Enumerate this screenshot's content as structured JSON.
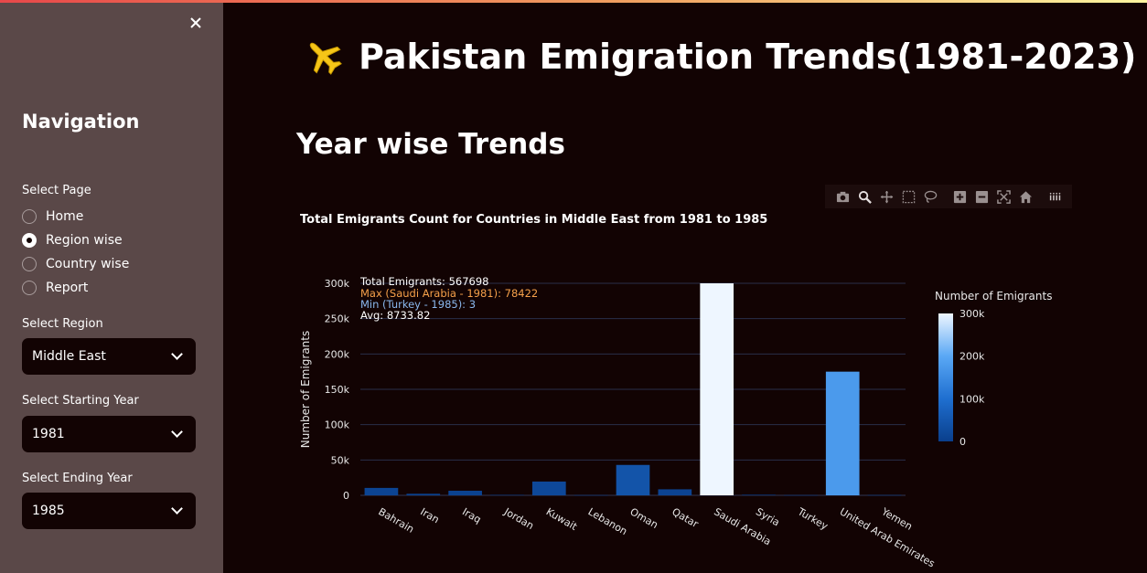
{
  "sidebar": {
    "nav_title": "Navigation",
    "page_label": "Select Page",
    "pages": [
      "Home",
      "Region wise",
      "Country wise",
      "Report"
    ],
    "selected_page": "Region wise",
    "region_label": "Select Region",
    "region_value": "Middle East",
    "start_label": "Select Starting Year",
    "start_value": "1981",
    "end_label": "Select Ending Year",
    "end_value": "1985"
  },
  "main": {
    "title": "Pakistan Emigration Trends(1981-2023)",
    "section_title": "Year wise Trends"
  },
  "modebar_icons": [
    "camera-icon",
    "zoom-icon",
    "pan-icon",
    "box-select-icon",
    "lasso-icon",
    "zoom-in-icon",
    "zoom-out-icon",
    "autoscale-icon",
    "home-icon",
    "plotly-logo-icon"
  ],
  "chart_data": {
    "type": "bar",
    "title": "Total Emigrants Count for Countries in Middle East from 1981 to 1985",
    "xlabel": "",
    "ylabel": "Number of Emigrants",
    "ylim": [
      0,
      300000
    ],
    "yticks": [
      "0",
      "50k",
      "100k",
      "150k",
      "200k",
      "250k",
      "300k"
    ],
    "categories": [
      "Bahrain",
      "Iran",
      "Iraq",
      "Jordan",
      "Kuwait",
      "Lebanon",
      "Oman",
      "Qatar",
      "Saudi Arabia",
      "Syria",
      "Turkey",
      "United Arab Emirates",
      "Yemen"
    ],
    "values": [
      10500,
      2200,
      6500,
      600,
      19500,
      300,
      43000,
      8500,
      300000,
      800,
      300,
      175000,
      400
    ],
    "annotations": {
      "total": "Total Emigrants: 567698",
      "max": "Max (Saudi Arabia - 1981): 78422",
      "min": "Min (Turkey - 1985): 3",
      "avg": "Avg: 8733.82"
    },
    "annotation_colors": {
      "total": "#ffffff",
      "max": "#f5a04a",
      "min": "#8ab8ee",
      "avg": "#ffffff"
    },
    "colorbar": {
      "title": "Number of Emigrants",
      "ticks": [
        "300k",
        "200k",
        "100k",
        "0"
      ]
    },
    "colorscale": [
      "#0a3f8c",
      "#1f6fd0",
      "#5aa8f5",
      "#eef6ff"
    ],
    "grid": true
  }
}
